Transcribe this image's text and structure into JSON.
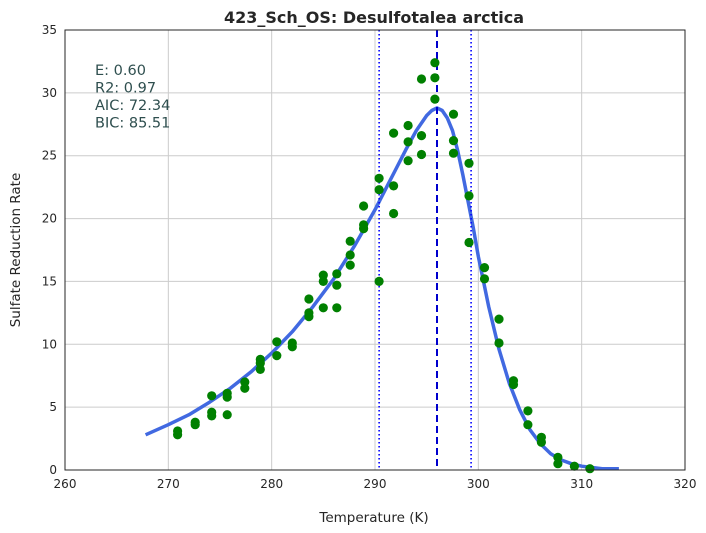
{
  "chart_data": {
    "type": "scatter",
    "title": "423_Sch_OS: Desulfotalea arctica",
    "xlabel": "Temperature (K)",
    "ylabel": "Sulfate Reduction Rate",
    "xlim": [
      260,
      320
    ],
    "ylim": [
      0,
      35
    ],
    "xticks": [
      "260",
      "270",
      "280",
      "290",
      "300",
      "310",
      "320"
    ],
    "yticks": [
      "0",
      "5",
      "10",
      "15",
      "20",
      "25",
      "30",
      "35"
    ],
    "grid": true,
    "stats": [
      "E:  0.60",
      "R2:  0.97",
      "AIC: 72.34",
      "BIC: 85.51"
    ],
    "colors": {
      "points": "#008000",
      "fit": "#4169e1",
      "peak_line": "#0000cd",
      "bounds": "#0000ff",
      "grid": "#cccccc"
    },
    "points": [
      [
        270.9,
        3.1
      ],
      [
        270.9,
        2.8
      ],
      [
        272.6,
        3.8
      ],
      [
        272.6,
        3.6
      ],
      [
        274.2,
        5.9
      ],
      [
        274.2,
        4.6
      ],
      [
        274.2,
        4.3
      ],
      [
        275.7,
        6.1
      ],
      [
        275.7,
        5.8
      ],
      [
        275.7,
        4.4
      ],
      [
        277.4,
        7.0
      ],
      [
        277.4,
        6.5
      ],
      [
        278.9,
        8.8
      ],
      [
        278.9,
        8.5
      ],
      [
        278.9,
        8.0
      ],
      [
        280.5,
        10.2
      ],
      [
        280.5,
        9.1
      ],
      [
        282.0,
        10.1
      ],
      [
        282.0,
        9.8
      ],
      [
        283.6,
        13.6
      ],
      [
        283.6,
        12.5
      ],
      [
        283.6,
        12.2
      ],
      [
        285.0,
        15.5
      ],
      [
        285.0,
        15.0
      ],
      [
        285.0,
        12.9
      ],
      [
        286.3,
        15.6
      ],
      [
        286.3,
        14.7
      ],
      [
        286.3,
        12.9
      ],
      [
        287.6,
        18.2
      ],
      [
        287.6,
        17.1
      ],
      [
        287.6,
        16.3
      ],
      [
        288.9,
        21.0
      ],
      [
        288.9,
        19.5
      ],
      [
        288.9,
        19.2
      ],
      [
        290.4,
        23.2
      ],
      [
        290.4,
        22.3
      ],
      [
        290.4,
        15.0
      ],
      [
        291.8,
        26.8
      ],
      [
        291.8,
        22.6
      ],
      [
        291.8,
        20.4
      ],
      [
        293.2,
        27.4
      ],
      [
        293.2,
        26.1
      ],
      [
        293.2,
        24.6
      ],
      [
        294.5,
        31.1
      ],
      [
        294.5,
        26.6
      ],
      [
        294.5,
        25.1
      ],
      [
        295.8,
        32.4
      ],
      [
        295.8,
        31.2
      ],
      [
        295.8,
        29.5
      ],
      [
        297.6,
        28.3
      ],
      [
        297.6,
        26.2
      ],
      [
        297.6,
        25.2
      ],
      [
        299.1,
        24.4
      ],
      [
        299.1,
        21.8
      ],
      [
        299.1,
        18.1
      ],
      [
        300.6,
        16.1
      ],
      [
        300.6,
        15.2
      ],
      [
        302.0,
        12.0
      ],
      [
        302.0,
        10.1
      ],
      [
        303.4,
        7.1
      ],
      [
        303.4,
        6.8
      ],
      [
        304.8,
        4.7
      ],
      [
        304.8,
        3.6
      ],
      [
        306.1,
        2.6
      ],
      [
        306.1,
        2.2
      ],
      [
        307.7,
        1.0
      ],
      [
        307.7,
        0.5
      ],
      [
        309.3,
        0.3
      ],
      [
        310.8,
        0.1
      ]
    ],
    "fit": {
      "name": "",
      "x": [
        267.8,
        270,
        272,
        274,
        276,
        278,
        280,
        282,
        284,
        286,
        288,
        290,
        291,
        292,
        293,
        294,
        295,
        295.5,
        296,
        296.5,
        297,
        297.5,
        298,
        298.5,
        299,
        299.5,
        300,
        300.5,
        301,
        302,
        303,
        304,
        305,
        306,
        307,
        308,
        309,
        310,
        311,
        312,
        313.6
      ],
      "y": [
        2.8,
        3.6,
        4.4,
        5.4,
        6.5,
        7.8,
        9.3,
        11.0,
        13.0,
        15.2,
        17.8,
        20.7,
        22.3,
        23.9,
        25.5,
        27.0,
        28.2,
        28.6,
        28.8,
        28.6,
        28.0,
        27.0,
        25.4,
        23.5,
        21.4,
        19.3,
        17.0,
        15.0,
        13.0,
        9.6,
        6.9,
        4.8,
        3.2,
        2.1,
        1.3,
        0.8,
        0.5,
        0.3,
        0.2,
        0.1,
        0.1
      ]
    },
    "peak_line_x": 296.0,
    "bound_lines_x": [
      290.4,
      299.3
    ]
  }
}
